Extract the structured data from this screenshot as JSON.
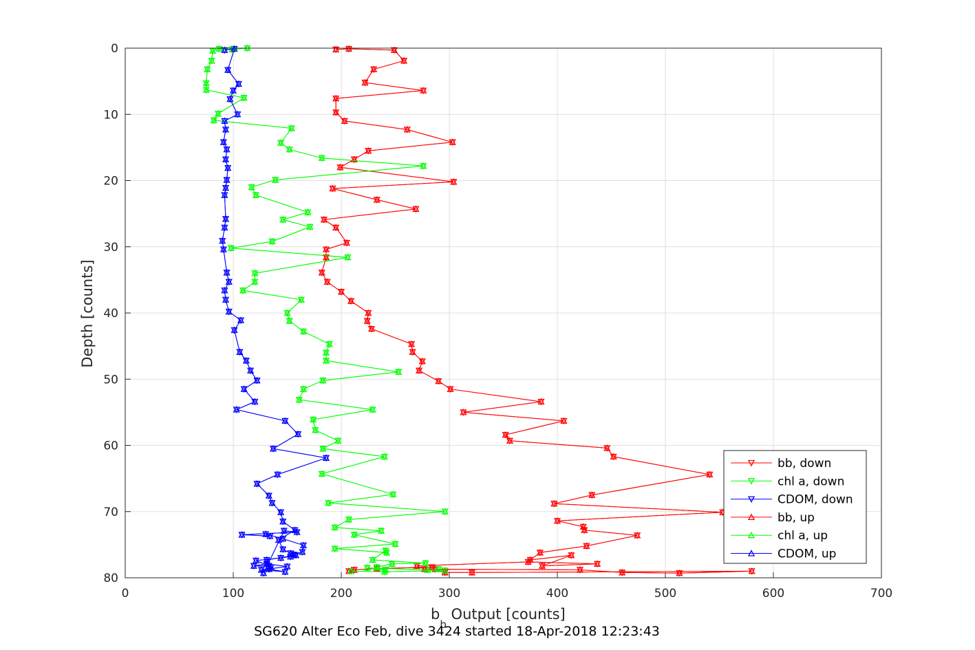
{
  "chart_data": {
    "type": "line",
    "title": "SG620 Alter Eco Feb, dive 3424 started 18-Apr-2018 12:23:43",
    "xlabel_main": "b",
    "xlabel_sub": "b",
    "xlabel_rest": " Output [counts]",
    "ylabel": "Depth [counts]",
    "xlim": [
      0,
      700
    ],
    "ylim": [
      0,
      80
    ],
    "y_reversed": true,
    "grid": true,
    "legend_position": "bottom-right",
    "xticks": [
      0,
      100,
      200,
      300,
      400,
      500,
      600,
      700
    ],
    "yticks": [
      0,
      10,
      20,
      30,
      40,
      50,
      60,
      70,
      80
    ],
    "series": [
      {
        "name": "bb, down",
        "color": "#ff0000",
        "marker": "triangle-down",
        "x": [
          195,
          207,
          249,
          258,
          230,
          222,
          276,
          195,
          195,
          203,
          261,
          303,
          225,
          212,
          199,
          304,
          192,
          233,
          269,
          184,
          195,
          205,
          186,
          186,
          182,
          187,
          200,
          209,
          225,
          224,
          228,
          265,
          266,
          275,
          272,
          290,
          301,
          385,
          313,
          406,
          352,
          356,
          446,
          452,
          541,
          432,
          397,
          553,
          400,
          424,
          425,
          474,
          427,
          384,
          375,
          413,
          386,
          437,
          373,
          270,
          277,
          421,
          460,
          513,
          580,
          321,
          296,
          287,
          284,
          233,
          212,
          207
        ],
        "y": [
          0.2,
          0.1,
          0.3,
          1.9,
          3.2,
          5.2,
          6.4,
          7.6,
          9.7,
          11.0,
          12.3,
          14.2,
          15.5,
          16.8,
          18.0,
          20.2,
          21.2,
          22.9,
          24.3,
          25.9,
          27.1,
          29.4,
          30.4,
          31.6,
          33.9,
          35.3,
          36.8,
          38.2,
          40.0,
          41.2,
          42.4,
          44.7,
          45.9,
          47.3,
          48.7,
          50.3,
          51.5,
          53.4,
          55.0,
          56.3,
          58.4,
          59.3,
          60.4,
          61.7,
          64.4,
          67.5,
          68.8,
          70.1,
          71.4,
          72.3,
          72.8,
          73.6,
          75.2,
          76.2,
          77.3,
          76.6,
          78.2,
          77.9,
          77.6,
          78.2,
          78.7,
          78.8,
          79.2,
          79.3,
          79.0,
          79.2,
          79.2,
          78.7,
          78.4,
          78.6,
          78.8,
          79.0
        ]
      },
      {
        "name": "chl a, down",
        "color": "#00ff00",
        "marker": "triangle-down",
        "x": [
          113,
          99,
          87,
          81,
          80,
          76,
          75,
          75,
          110,
          86,
          82,
          154,
          144,
          152,
          182,
          276,
          139,
          117,
          121,
          169,
          146,
          171,
          136,
          98,
          206,
          120,
          120,
          109,
          163,
          150,
          152,
          165,
          189,
          186,
          186,
          253,
          183,
          165,
          161,
          229,
          174,
          176,
          197,
          183,
          240,
          182,
          248,
          188,
          296,
          207,
          194,
          237,
          212,
          250,
          194,
          242,
          241,
          229,
          278,
          247,
          233,
          241,
          224,
          280,
          290,
          296,
          240,
          209
        ],
        "y": [
          0.0,
          0.2,
          0.1,
          0.4,
          1.9,
          3.2,
          5.3,
          6.3,
          7.5,
          9.9,
          10.9,
          12.1,
          14.3,
          15.3,
          16.6,
          17.8,
          19.9,
          21.0,
          22.2,
          24.8,
          25.9,
          27.0,
          29.2,
          30.2,
          31.6,
          34.0,
          35.3,
          36.6,
          38.0,
          40.0,
          41.2,
          42.8,
          44.7,
          46.0,
          47.2,
          48.9,
          50.2,
          51.5,
          53.1,
          54.6,
          56.1,
          57.7,
          59.3,
          60.5,
          61.7,
          64.3,
          67.4,
          68.7,
          70.0,
          71.2,
          72.4,
          72.9,
          73.5,
          74.9,
          75.6,
          76.2,
          75.9,
          77.3,
          77.8,
          77.9,
          78.4,
          78.8,
          78.5,
          78.8,
          78.7,
          78.9,
          79.1,
          79.0
        ]
      },
      {
        "name": "CDOM, down",
        "color": "#0000ff",
        "marker": "triangle-down",
        "x": [
          92,
          101,
          95,
          105,
          100,
          97,
          104,
          92,
          93,
          91,
          94,
          93,
          95,
          94,
          93,
          92,
          93,
          92,
          90,
          91,
          94,
          96,
          92,
          93,
          96,
          107,
          101,
          106,
          112,
          116,
          122,
          110,
          120,
          103,
          148,
          160,
          137,
          186,
          141,
          122,
          133,
          136,
          144,
          146,
          157,
          142,
          146,
          153,
          158,
          131,
          135,
          133,
          148,
          126,
          150,
          131,
          119,
          133,
          121,
          144,
          153,
          156,
          164,
          165,
          146,
          130,
          134,
          108,
          159,
          147,
          128
        ],
        "y": [
          0.3,
          0.1,
          3.3,
          5.4,
          6.4,
          7.7,
          10.0,
          11.0,
          12.3,
          14.2,
          15.3,
          16.8,
          18.1,
          19.9,
          21.1,
          22.2,
          25.8,
          27.1,
          29.1,
          30.4,
          33.9,
          35.3,
          36.6,
          38.0,
          39.8,
          41.1,
          42.6,
          45.9,
          47.2,
          48.7,
          50.2,
          51.5,
          53.4,
          54.6,
          56.3,
          58.3,
          60.5,
          61.9,
          64.4,
          65.8,
          67.6,
          68.7,
          70.1,
          71.5,
          72.8,
          74.3,
          75.7,
          76.3,
          76.6,
          77.3,
          78.4,
          78.7,
          79.1,
          78.8,
          78.3,
          77.9,
          78.2,
          78.2,
          77.4,
          77.0,
          76.8,
          76.5,
          76.1,
          75.1,
          74.1,
          73.4,
          73.7,
          73.5,
          73.1,
          72.9,
          79.3
        ]
      },
      {
        "name": "bb, up",
        "color": "#ff0000",
        "marker": "triangle-up",
        "x": [
          195,
          207,
          249,
          258,
          230,
          222,
          276,
          195,
          195,
          203,
          261,
          303,
          225,
          212,
          199,
          304,
          192,
          233,
          269,
          184,
          195,
          205,
          186,
          186,
          182,
          187,
          200,
          209,
          225,
          224,
          228,
          265,
          266,
          275,
          272,
          290,
          301,
          385,
          313,
          406,
          352,
          356,
          446,
          452,
          541,
          432,
          397,
          553,
          400,
          424,
          425,
          474,
          427,
          384,
          375,
          413,
          386,
          437,
          373,
          270,
          277,
          421,
          460,
          513,
          580,
          321,
          296,
          287,
          284,
          233,
          212,
          207
        ],
        "y": [
          0.2,
          0.1,
          0.3,
          1.9,
          3.2,
          5.2,
          6.4,
          7.6,
          9.7,
          11.0,
          12.3,
          14.2,
          15.5,
          16.8,
          18.0,
          20.2,
          21.2,
          22.9,
          24.3,
          25.9,
          27.1,
          29.4,
          30.4,
          31.6,
          33.9,
          35.3,
          36.8,
          38.2,
          40.0,
          41.2,
          42.4,
          44.7,
          45.9,
          47.3,
          48.7,
          50.3,
          51.5,
          53.4,
          55.0,
          56.3,
          58.4,
          59.3,
          60.4,
          61.7,
          64.4,
          67.5,
          68.8,
          70.1,
          71.4,
          72.3,
          72.8,
          73.6,
          75.2,
          76.2,
          77.3,
          76.6,
          78.2,
          77.9,
          77.6,
          78.2,
          78.7,
          78.8,
          79.2,
          79.3,
          79.0,
          79.2,
          79.2,
          78.7,
          78.4,
          78.6,
          78.8,
          79.0
        ]
      },
      {
        "name": "chl a, up",
        "color": "#00ff00",
        "marker": "triangle-up",
        "x": [
          113,
          99,
          87,
          81,
          80,
          76,
          75,
          75,
          110,
          86,
          82,
          154,
          144,
          152,
          182,
          276,
          139,
          117,
          121,
          169,
          146,
          171,
          136,
          98,
          206,
          120,
          120,
          109,
          163,
          150,
          152,
          165,
          189,
          186,
          186,
          253,
          183,
          165,
          161,
          229,
          174,
          176,
          197,
          183,
          240,
          182,
          248,
          188,
          296,
          207,
          194,
          237,
          212,
          250,
          194,
          242,
          241,
          229,
          278,
          247,
          233,
          241,
          224,
          280,
          290,
          296,
          240,
          209
        ],
        "y": [
          0.0,
          0.2,
          0.1,
          0.4,
          1.9,
          3.2,
          5.3,
          6.3,
          7.5,
          9.9,
          10.9,
          12.1,
          14.3,
          15.3,
          16.6,
          17.8,
          19.9,
          21.0,
          22.2,
          24.8,
          25.9,
          27.0,
          29.2,
          30.2,
          31.6,
          34.0,
          35.3,
          36.6,
          38.0,
          40.0,
          41.2,
          42.8,
          44.7,
          46.0,
          47.2,
          48.9,
          50.2,
          51.5,
          53.1,
          54.6,
          56.1,
          57.7,
          59.3,
          60.5,
          61.7,
          64.3,
          67.4,
          68.7,
          70.0,
          71.2,
          72.4,
          72.9,
          73.5,
          74.9,
          75.6,
          76.2,
          75.9,
          77.3,
          77.8,
          77.9,
          78.4,
          78.8,
          78.5,
          78.8,
          78.7,
          78.9,
          79.1,
          79.0
        ]
      },
      {
        "name": "CDOM, up",
        "color": "#0000ff",
        "marker": "triangle-up",
        "x": [
          92,
          101,
          95,
          105,
          100,
          97,
          104,
          92,
          93,
          91,
          94,
          93,
          95,
          94,
          93,
          92,
          93,
          92,
          90,
          91,
          94,
          96,
          92,
          93,
          96,
          107,
          101,
          106,
          112,
          116,
          122,
          110,
          120,
          103,
          148,
          160,
          137,
          186,
          141,
          122,
          133,
          136,
          144,
          146,
          157,
          142,
          146,
          153,
          158,
          131,
          135,
          133,
          148,
          126,
          150,
          131,
          119,
          133,
          121,
          144,
          153,
          156,
          164,
          165,
          146,
          130,
          134,
          108,
          159,
          147,
          128
        ],
        "y": [
          0.3,
          0.1,
          3.3,
          5.4,
          6.4,
          7.7,
          10.0,
          11.0,
          12.3,
          14.2,
          15.3,
          16.8,
          18.1,
          19.9,
          21.1,
          22.2,
          25.8,
          27.1,
          29.1,
          30.4,
          33.9,
          35.3,
          36.6,
          38.0,
          39.8,
          41.1,
          42.6,
          45.9,
          47.2,
          48.7,
          50.2,
          51.5,
          53.4,
          54.6,
          56.3,
          58.3,
          60.5,
          61.9,
          64.4,
          65.8,
          67.6,
          68.7,
          70.1,
          71.5,
          72.8,
          74.3,
          75.7,
          76.3,
          76.6,
          77.3,
          78.4,
          78.7,
          79.1,
          78.8,
          78.3,
          77.9,
          78.2,
          78.2,
          77.4,
          77.0,
          76.8,
          76.5,
          76.1,
          75.1,
          74.1,
          73.4,
          73.7,
          73.5,
          73.1,
          72.9,
          79.3
        ]
      }
    ]
  }
}
